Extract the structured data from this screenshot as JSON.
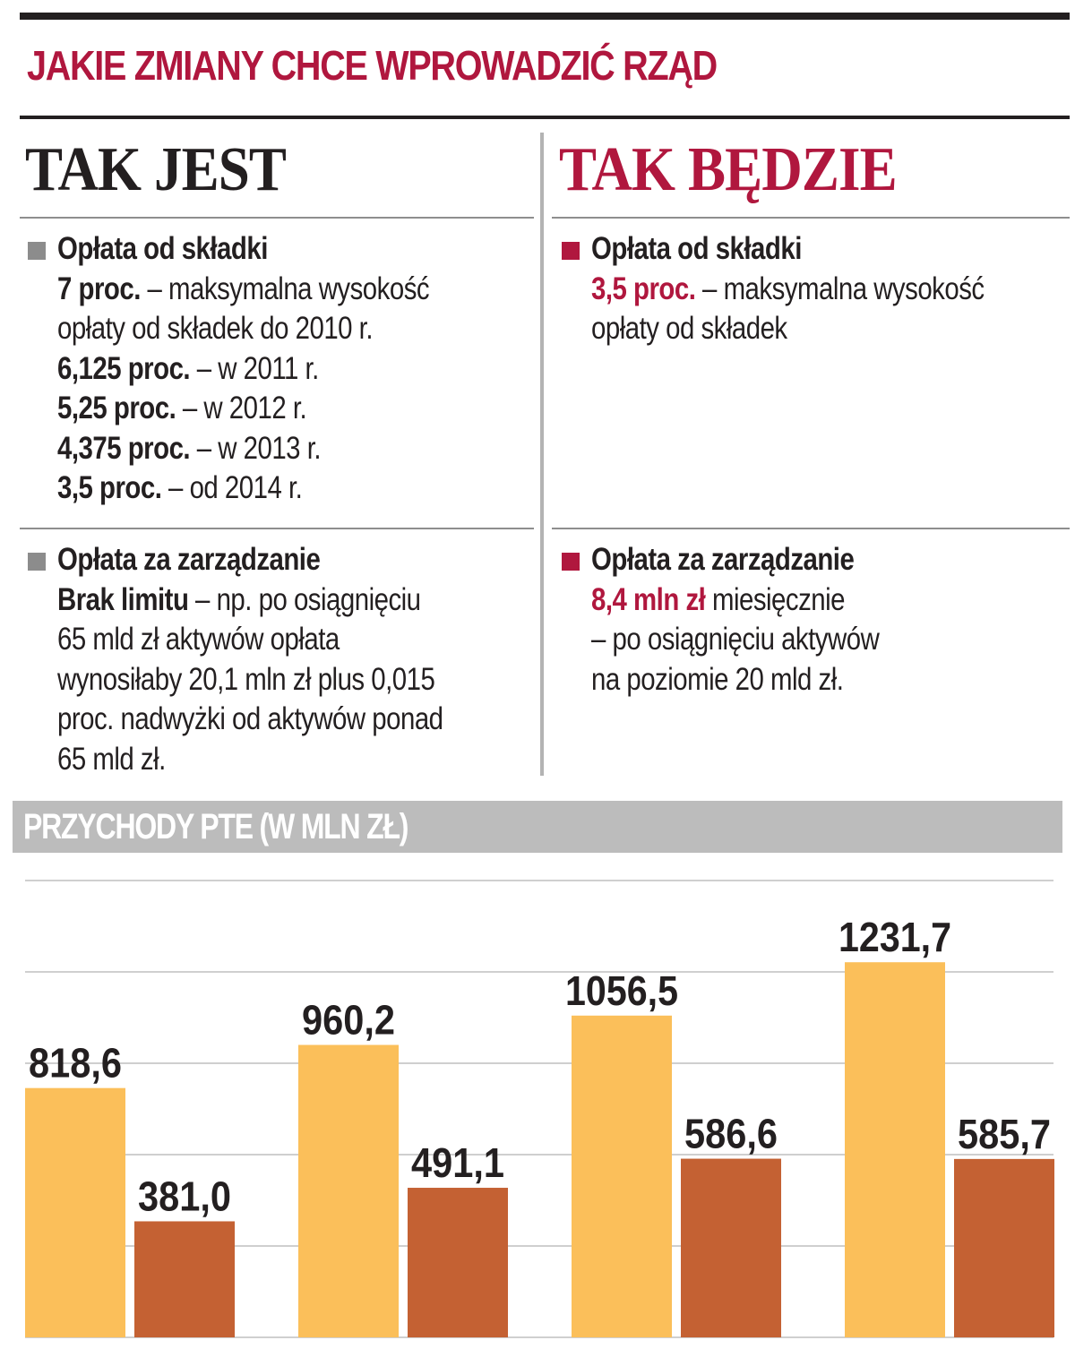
{
  "header": {
    "title": "JAKIE ZMIANY CHCE WPROWADZIĆ RZĄD"
  },
  "left": {
    "heading": "TAK JEST",
    "sections": [
      {
        "title": "Opłata od składki",
        "lines": [
          {
            "bold": "7 proc.",
            "rest": " – maksymalna wysokość"
          },
          {
            "bold": "",
            "rest": "opłaty od składek do 2010 r."
          },
          {
            "bold": "6,125 proc.",
            "rest": " – w 2011 r."
          },
          {
            "bold": "5,25 proc.",
            "rest": " – w 2012 r."
          },
          {
            "bold": "4,375 proc.",
            "rest": " – w 2013 r."
          },
          {
            "bold": "3,5 proc.",
            "rest": " – od 2014 r."
          }
        ]
      },
      {
        "title": "Opłata za zarządzanie",
        "lines": [
          {
            "bold": "Brak limitu",
            "rest": " – np. po osiągnięciu"
          },
          {
            "bold": "",
            "rest": "65 mld zł aktywów opłata"
          },
          {
            "bold": "",
            "rest": "wynosiłaby 20,1 mln zł plus 0,015"
          },
          {
            "bold": "",
            "rest": "proc. nadwyżki od aktywów ponad"
          },
          {
            "bold": "",
            "rest": "65 mld zł."
          }
        ]
      }
    ]
  },
  "right": {
    "heading": "TAK BĘDZIE",
    "sections": [
      {
        "title": "Opłata od składki",
        "lines": [
          {
            "bold": "3,5 proc.",
            "rest": " – maksymalna wysokość"
          },
          {
            "bold": "",
            "rest": "opłaty od składek"
          }
        ]
      },
      {
        "title": "Opłata za zarządzanie",
        "lines": [
          {
            "bold": "8,4 mln zł",
            "rest": " miesięcznie"
          },
          {
            "bold": "",
            "rest": "– po osiągnięciu aktywów"
          },
          {
            "bold": "",
            "rest": "na poziomie 20 mld zł."
          }
        ]
      }
    ]
  },
  "colors": {
    "accent_red": "#b0173e",
    "bullet_gray": "#8c8c8c",
    "band_gray": "#bcbcbc",
    "series_1": "#fbbf5a",
    "series_2": "#c46133",
    "gridline": "#cfcfcf"
  },
  "chart_data": {
    "type": "bar",
    "title": "PRZYCHODY PTE (W MLN ZŁ)",
    "categories": [
      "",
      "",
      "",
      ""
    ],
    "series": [
      {
        "values": [
          818.6,
          960.2,
          1056.5,
          1231.7
        ]
      },
      {
        "values": [
          381.0,
          491.1,
          586.6,
          585.7
        ]
      }
    ],
    "value_labels": [
      [
        "818,6",
        "960,2",
        "1056,5",
        "1231,7"
      ],
      [
        "381,0",
        "491,1",
        "586,6",
        "585,7"
      ]
    ],
    "ylim": [
      0,
      1500
    ],
    "grid": true,
    "legend": "none"
  }
}
